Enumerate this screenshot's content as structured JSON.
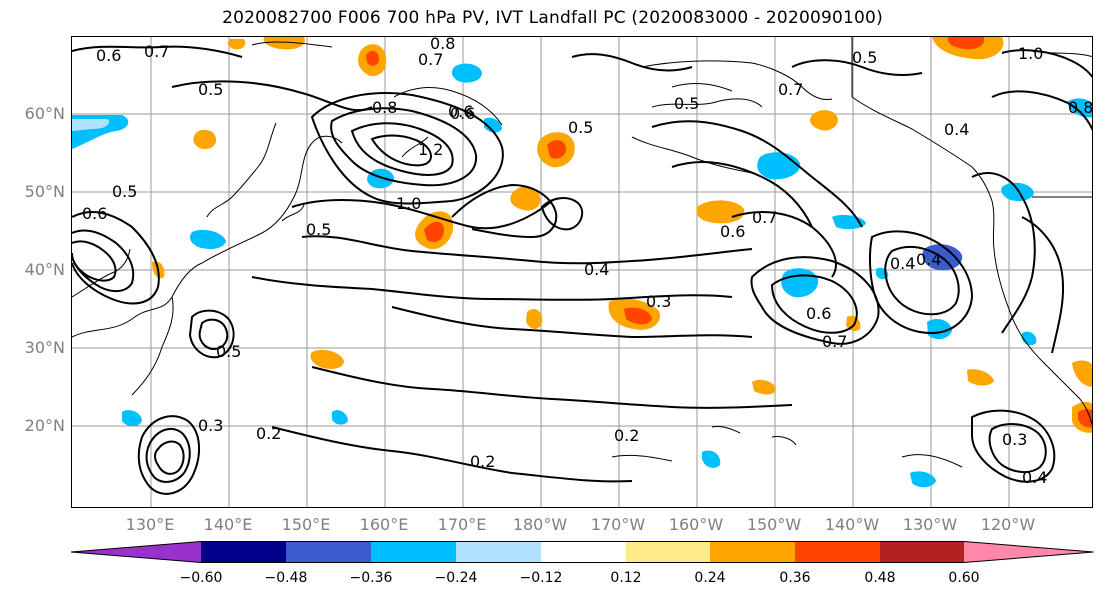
{
  "title": "2020082700 F006 700 hPa PV, IVT Landfall PC (2020083000 - 2020090100)",
  "lat_labels": [
    "60°N",
    "50°N",
    "40°N",
    "30°N",
    "20°N"
  ],
  "lon_labels": [
    "130°E",
    "140°E",
    "150°E",
    "160°E",
    "170°E",
    "180°W",
    "170°W",
    "160°W",
    "150°W",
    "140°W",
    "130°W",
    "120°W"
  ],
  "colorbar": {
    "ticks": [
      "−0.60",
      "−0.48",
      "−0.36",
      "−0.24",
      "−0.12",
      "0.12",
      "0.24",
      "0.36",
      "0.48",
      "0.60"
    ],
    "colors": [
      "#9932cc",
      "#00008b",
      "#3a5bcc",
      "#00bfff",
      "#b0e2ff",
      "#ffffff",
      "#ffeb8a",
      "#ffa500",
      "#ff4500",
      "#b22222",
      "#ff88aa"
    ]
  },
  "contour_labels": [
    "0.6",
    "0.7",
    "0.8",
    "0.7",
    "0.5",
    "0.8",
    "0.6",
    "1.2",
    "1.0",
    "0.5",
    "0.5",
    "0.6",
    "0.5",
    "0.6",
    "0.4",
    "0.3",
    "0.6",
    "0.7",
    "0.4",
    "0.7",
    "0.4",
    "0.6",
    "0.5",
    "0.7",
    "0.8",
    "0.5",
    "1.0",
    "0.4",
    "0.3",
    "0.2",
    "0.2",
    "0.3",
    "0.4",
    "0.2",
    "0.5"
  ],
  "shading_colors": {
    "positive": "#ffa500",
    "strong_positive": "#ff4500",
    "light_positive": "#ffeb8a",
    "negative": "#00bfff",
    "light_negative": "#b0e2ff",
    "strong_negative": "#3a5bcc"
  }
}
